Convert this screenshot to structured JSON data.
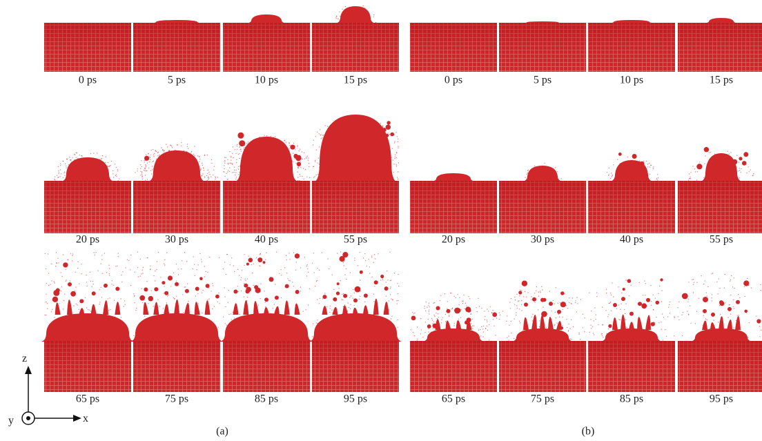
{
  "panels": [
    {
      "label": "(a)",
      "frames": [
        "0 ps",
        "5 ps",
        "10 ps",
        "15 ps",
        "20 ps",
        "30 ps",
        "40 ps",
        "55 ps",
        "65 ps",
        "75 ps",
        "85 ps",
        "95 ps"
      ]
    },
    {
      "label": "(b)",
      "frames": [
        "0 ps",
        "5 ps",
        "10 ps",
        "15 ps",
        "20 ps",
        "30 ps",
        "40 ps",
        "55 ps",
        "65 ps",
        "75 ps",
        "85 ps",
        "95 ps"
      ]
    }
  ],
  "axes": {
    "z": "z",
    "x": "x",
    "y": "y"
  }
}
